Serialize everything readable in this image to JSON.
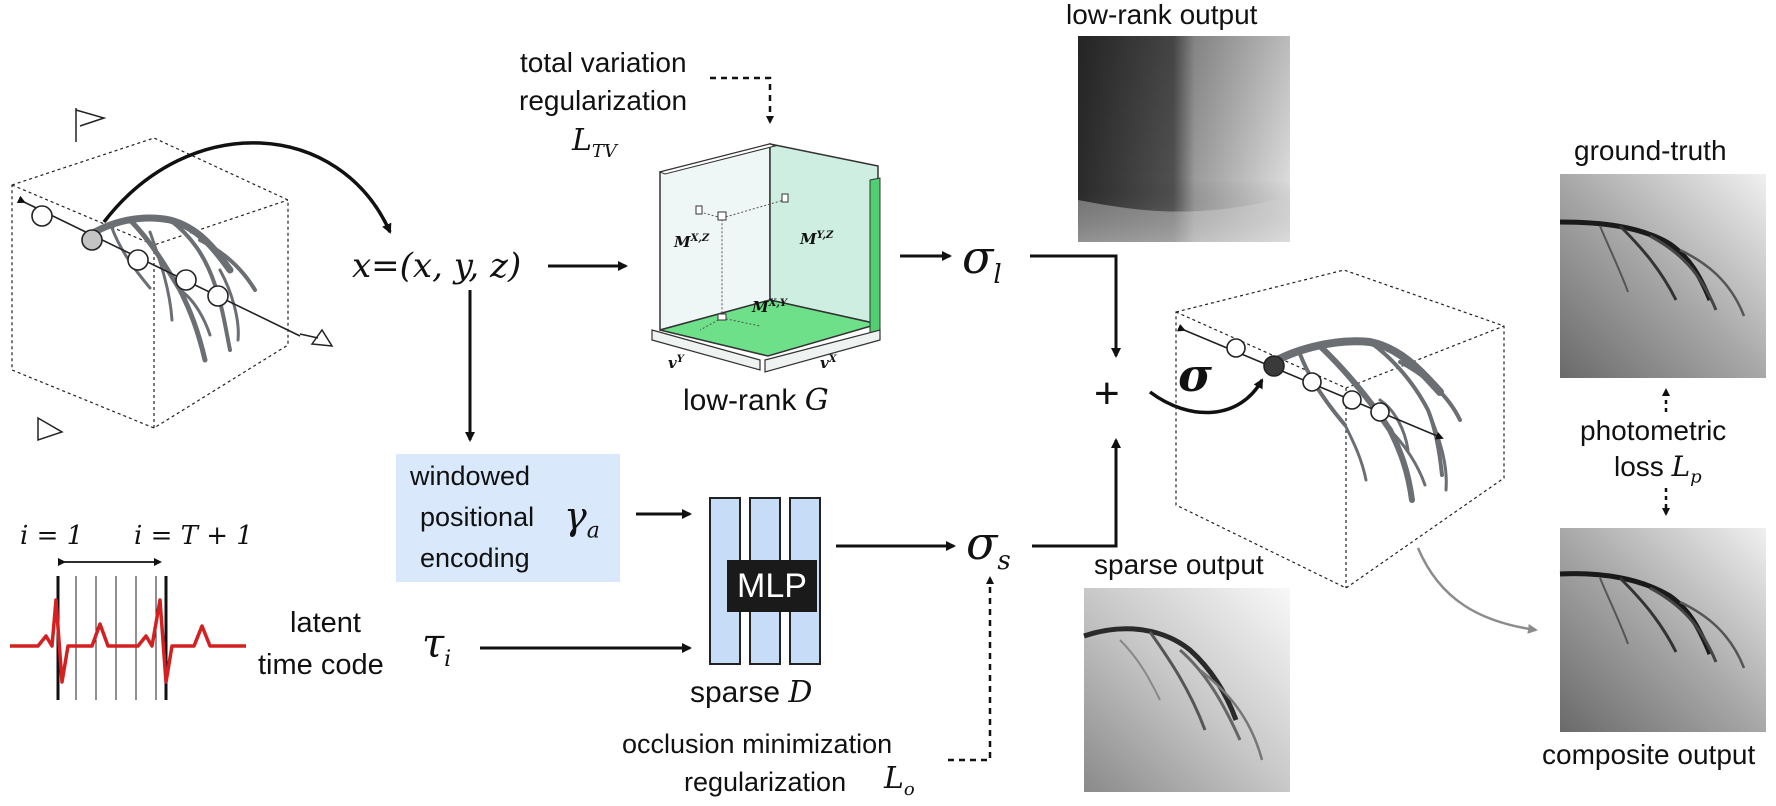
{
  "texts": {
    "tv_line1": "total variation",
    "tv_line2": "regularization",
    "tv_symbol_main": "L",
    "tv_symbol_sub": "TV",
    "x_eq": "x=(x, y, z)",
    "lowrank_label": "low-rank",
    "lowrank_symbol": "G",
    "m_xz": "M",
    "m_xz_sup": "X,Z",
    "m_yz": "M",
    "m_yz_sup": "Y,Z",
    "m_xy": "M",
    "m_xy_sup": "X,Y",
    "v_y": "v",
    "v_y_sup": "Y",
    "v_x": "v",
    "v_x_sup": "X",
    "sigma_l": "σ",
    "sigma_l_sub": "l",
    "sigma_s": "σ",
    "sigma_s_sub": "s",
    "sigma": "σ",
    "plus": "+",
    "pe_line1": "windowed",
    "pe_line2": "positional",
    "pe_line3": "encoding",
    "gamma": "γ",
    "gamma_sub": "a",
    "mlp": "MLP",
    "sparse_label": "sparse",
    "sparse_symbol": "D",
    "latent_line1": "latent",
    "latent_line2": "time code",
    "tau": "τ",
    "tau_sub": "i",
    "i_eq_1": "i = 1",
    "i_eq_T1": "i = T + 1",
    "occ_line1": "occlusion minimization",
    "occ_line2": "regularization",
    "occ_symbol_main": "L",
    "occ_symbol_sub": "o",
    "lowrank_output": "low-rank output",
    "sparse_output": "sparse output",
    "ground_truth": "ground-truth",
    "photometric_line1": "photometric",
    "photometric_line2": "loss",
    "photo_symbol_main": "L",
    "photo_symbol_sub": "p",
    "composite_output": "composite output"
  },
  "colors": {
    "ink": "#111111",
    "pe_box": "#d9e9fb",
    "mlp_bar": "#c6dcf7",
    "green_floor": "#6ee08a",
    "green_wall": "#cdeee0",
    "vessel": "#6b6f73",
    "ecg_red": "#d42020",
    "grey_arrow": "#8c8c8c"
  },
  "icons": [
    "camera-icon",
    "arrow-icon",
    "vessel-icon",
    "ecg-icon",
    "sample-point-icon"
  ]
}
